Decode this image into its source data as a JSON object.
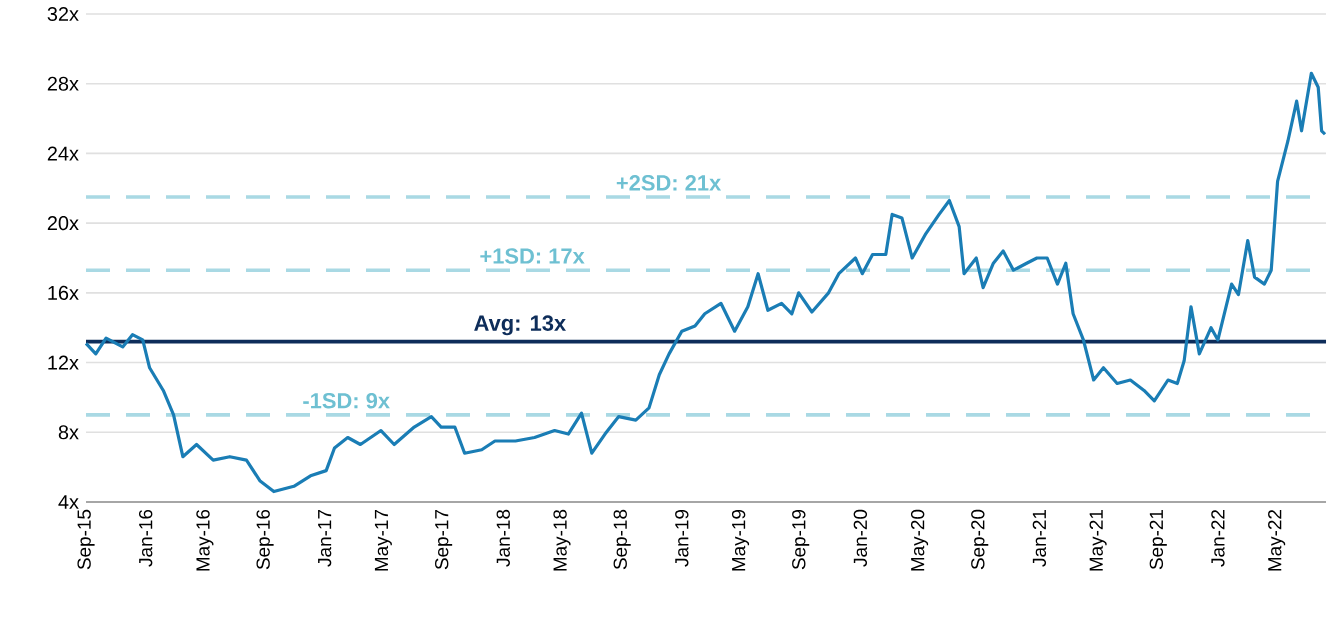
{
  "chart_data": {
    "type": "line",
    "x": [
      "2015-09-01",
      "2015-09-21",
      "2015-10-12",
      "2015-11-15",
      "2015-12-05",
      "2015-12-26",
      "2016-01-09",
      "2016-02-06",
      "2016-02-27",
      "2016-03-17",
      "2016-04-14",
      "2016-05-18",
      "2016-06-21",
      "2016-07-25",
      "2016-08-22",
      "2016-09-19",
      "2016-10-30",
      "2016-12-03",
      "2017-01-04",
      "2017-01-21",
      "2017-02-17",
      "2017-03-15",
      "2017-04-26",
      "2017-05-23",
      "2017-07-03",
      "2017-08-07",
      "2017-08-27",
      "2017-09-24",
      "2017-10-14",
      "2017-11-18",
      "2017-12-15",
      "2018-01-26",
      "2018-03-06",
      "2018-04-16",
      "2018-05-14",
      "2018-06-10",
      "2018-07-01",
      "2018-07-28",
      "2018-08-25",
      "2018-09-29",
      "2018-10-26",
      "2018-11-16",
      "2018-12-06",
      "2019-01-01",
      "2019-01-28",
      "2019-02-17",
      "2019-03-22",
      "2019-04-19",
      "2019-05-16",
      "2019-06-06",
      "2019-06-26",
      "2019-07-24",
      "2019-08-14",
      "2019-08-28",
      "2019-09-24",
      "2019-10-28",
      "2019-11-18",
      "2019-12-22",
      "2020-01-05",
      "2020-01-26",
      "2020-02-22",
      "2020-03-06",
      "2020-03-26",
      "2020-04-16",
      "2020-05-14",
      "2020-06-10",
      "2020-07-01",
      "2020-07-21",
      "2020-07-31",
      "2020-08-25",
      "2020-09-08",
      "2020-09-29",
      "2020-10-19",
      "2020-11-09",
      "2020-12-06",
      "2020-12-27",
      "2021-01-17",
      "2021-02-07",
      "2021-02-24",
      "2021-03-11",
      "2021-04-01",
      "2021-04-22",
      "2021-05-12",
      "2021-06-09",
      "2021-07-06",
      "2021-08-03",
      "2021-08-24",
      "2021-09-21",
      "2021-10-10",
      "2021-10-24",
      "2021-11-07",
      "2021-11-24",
      "2021-12-18",
      "2022-01-01",
      "2022-01-29",
      "2022-02-12",
      "2022-03-03",
      "2022-03-17",
      "2022-04-06",
      "2022-04-20",
      "2022-05-03",
      "2022-05-24",
      "2022-06-11",
      "2022-06-21",
      "2022-07-11",
      "2022-07-25",
      "2022-08-01",
      "2022-08-08"
    ],
    "series": [
      {
        "color": "#1a7db5",
        "values": [
          13.1,
          12.5,
          13.4,
          12.9,
          13.6,
          13.3,
          11.7,
          10.4,
          9.0,
          6.6,
          7.3,
          6.4,
          6.6,
          6.4,
          5.2,
          4.6,
          4.9,
          5.5,
          5.8,
          7.1,
          7.7,
          7.3,
          8.1,
          7.3,
          8.3,
          8.9,
          8.3,
          8.3,
          6.8,
          7.0,
          7.5,
          7.5,
          7.7,
          8.1,
          7.9,
          9.1,
          6.8,
          7.9,
          8.9,
          8.7,
          9.4,
          11.3,
          12.5,
          13.8,
          14.1,
          14.8,
          15.4,
          13.8,
          15.2,
          17.1,
          15.0,
          15.4,
          14.8,
          16.0,
          14.9,
          16.0,
          17.1,
          18.0,
          17.1,
          18.2,
          18.2,
          20.5,
          20.3,
          18.0,
          19.4,
          20.5,
          21.3,
          19.8,
          17.1,
          18.0,
          16.3,
          17.7,
          18.4,
          17.3,
          17.7,
          18.0,
          18.0,
          16.5,
          17.7,
          14.8,
          13.3,
          11.0,
          11.7,
          10.8,
          11.0,
          10.4,
          9.8,
          11.0,
          10.8,
          12.1,
          15.2,
          12.5,
          14.0,
          13.3,
          16.5,
          15.9,
          19.0,
          16.9,
          16.5,
          17.3,
          22.4,
          24.7,
          27.0,
          25.3,
          28.6,
          27.8,
          25.3,
          25.1
        ]
      }
    ],
    "xlim": [
      "2015-09-01",
      "2022-08-10"
    ],
    "ylim": [
      4,
      32
    ],
    "xticks": [
      {
        "value": "2015-09-01",
        "label": "Sep-15"
      },
      {
        "value": "2016-01-01",
        "label": "Jan-16"
      },
      {
        "value": "2016-05-01",
        "label": "May-16"
      },
      {
        "value": "2016-09-01",
        "label": "Sep-16"
      },
      {
        "value": "2017-01-01",
        "label": "Jan-17"
      },
      {
        "value": "2017-05-01",
        "label": "May-17"
      },
      {
        "value": "2017-09-01",
        "label": "Sep-17"
      },
      {
        "value": "2018-01-01",
        "label": "Jan-18"
      },
      {
        "value": "2018-05-01",
        "label": "May-18"
      },
      {
        "value": "2018-09-01",
        "label": "Sep-18"
      },
      {
        "value": "2019-01-01",
        "label": "Jan-19"
      },
      {
        "value": "2019-05-01",
        "label": "May-19"
      },
      {
        "value": "2019-09-01",
        "label": "Sep-19"
      },
      {
        "value": "2020-01-01",
        "label": "Jan-20"
      },
      {
        "value": "2020-05-01",
        "label": "May-20"
      },
      {
        "value": "2020-09-01",
        "label": "Sep-20"
      },
      {
        "value": "2021-01-01",
        "label": "Jan-21"
      },
      {
        "value": "2021-05-01",
        "label": "May-21"
      },
      {
        "value": "2021-09-01",
        "label": "Sep-21"
      },
      {
        "value": "2022-01-01",
        "label": "Jan-22"
      },
      {
        "value": "2022-05-01",
        "label": "May-22"
      }
    ],
    "yticks": [
      {
        "value": 4,
        "label": "4x"
      },
      {
        "value": 8,
        "label": "8x"
      },
      {
        "value": 12,
        "label": "12x"
      },
      {
        "value": 16,
        "label": "16x"
      },
      {
        "value": 20,
        "label": "20x"
      },
      {
        "value": 24,
        "label": "24x"
      },
      {
        "value": 28,
        "label": "28x"
      },
      {
        "value": 32,
        "label": "32x"
      }
    ],
    "grid": "y",
    "ref_lines": [
      {
        "axis": "y",
        "value": 21.5,
        "label": "+2SD: 21x",
        "color": "#a9d9e4",
        "line_style": "dashed"
      },
      {
        "axis": "y",
        "value": 17.3,
        "label": "+1SD: 17x",
        "color": "#a9d9e4",
        "line_style": "dashed"
      },
      {
        "axis": "y",
        "value": 13.2,
        "label": "Avg: 13x",
        "color": "#0e2d5a",
        "line_style": "solid"
      },
      {
        "axis": "y",
        "value": 9.0,
        "label": "-1SD: 9x",
        "color": "#a9d9e4",
        "line_style": "dashed"
      }
    ]
  }
}
